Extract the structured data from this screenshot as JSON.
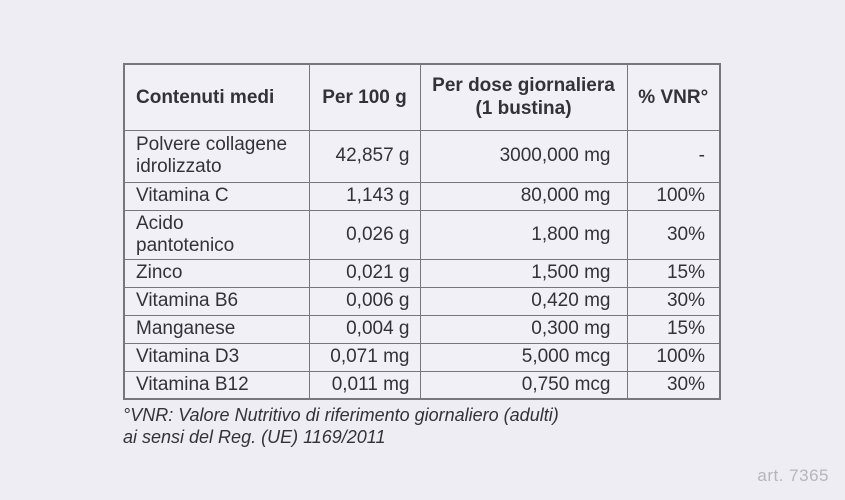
{
  "page": {
    "background_color": "#eeedf3",
    "artwork_number": "art. 7365"
  },
  "table": {
    "fill_color": "#f1f0f7",
    "border_color": "#77767f",
    "text_color": "#333238",
    "header": {
      "col1": "Contenuti medi",
      "col2": "Per 100 g",
      "col3": "Per dose giornaliera\n(1 bustina)",
      "col4": "% VNR°"
    },
    "rows": [
      {
        "name": "Polvere collagene\nidrolizzato",
        "per_100g": "42,857 g",
        "per_dose": "3000,000 mg",
        "vnr": "-"
      },
      {
        "name": "Vitamina C",
        "per_100g": "1,143 g",
        "per_dose": "80,000 mg",
        "vnr": "100%"
      },
      {
        "name": "Acido\npantotenico",
        "per_100g": "0,026 g",
        "per_dose": "1,800 mg",
        "vnr": "30%"
      },
      {
        "name": "Zinco",
        "per_100g": "0,021 g",
        "per_dose": "1,500 mg",
        "vnr": "15%"
      },
      {
        "name": "Vitamina B6",
        "per_100g": "0,006 g",
        "per_dose": "0,420 mg",
        "vnr": "30%"
      },
      {
        "name": "Manganese",
        "per_100g": "0,004 g",
        "per_dose": "0,300 mg",
        "vnr": "15%"
      },
      {
        "name": "Vitamina D3",
        "per_100g": "0,071 mg",
        "per_dose": "5,000 mcg",
        "vnr": "100%"
      },
      {
        "name": "Vitamina B12",
        "per_100g": "0,011 mg",
        "per_dose": "0,750 mcg",
        "vnr": "30%"
      }
    ]
  },
  "footnote": {
    "text": "°VNR: Valore Nutritivo di riferimento giornaliero (adulti)\nai sensi del Reg. (UE) 1169/2011"
  }
}
